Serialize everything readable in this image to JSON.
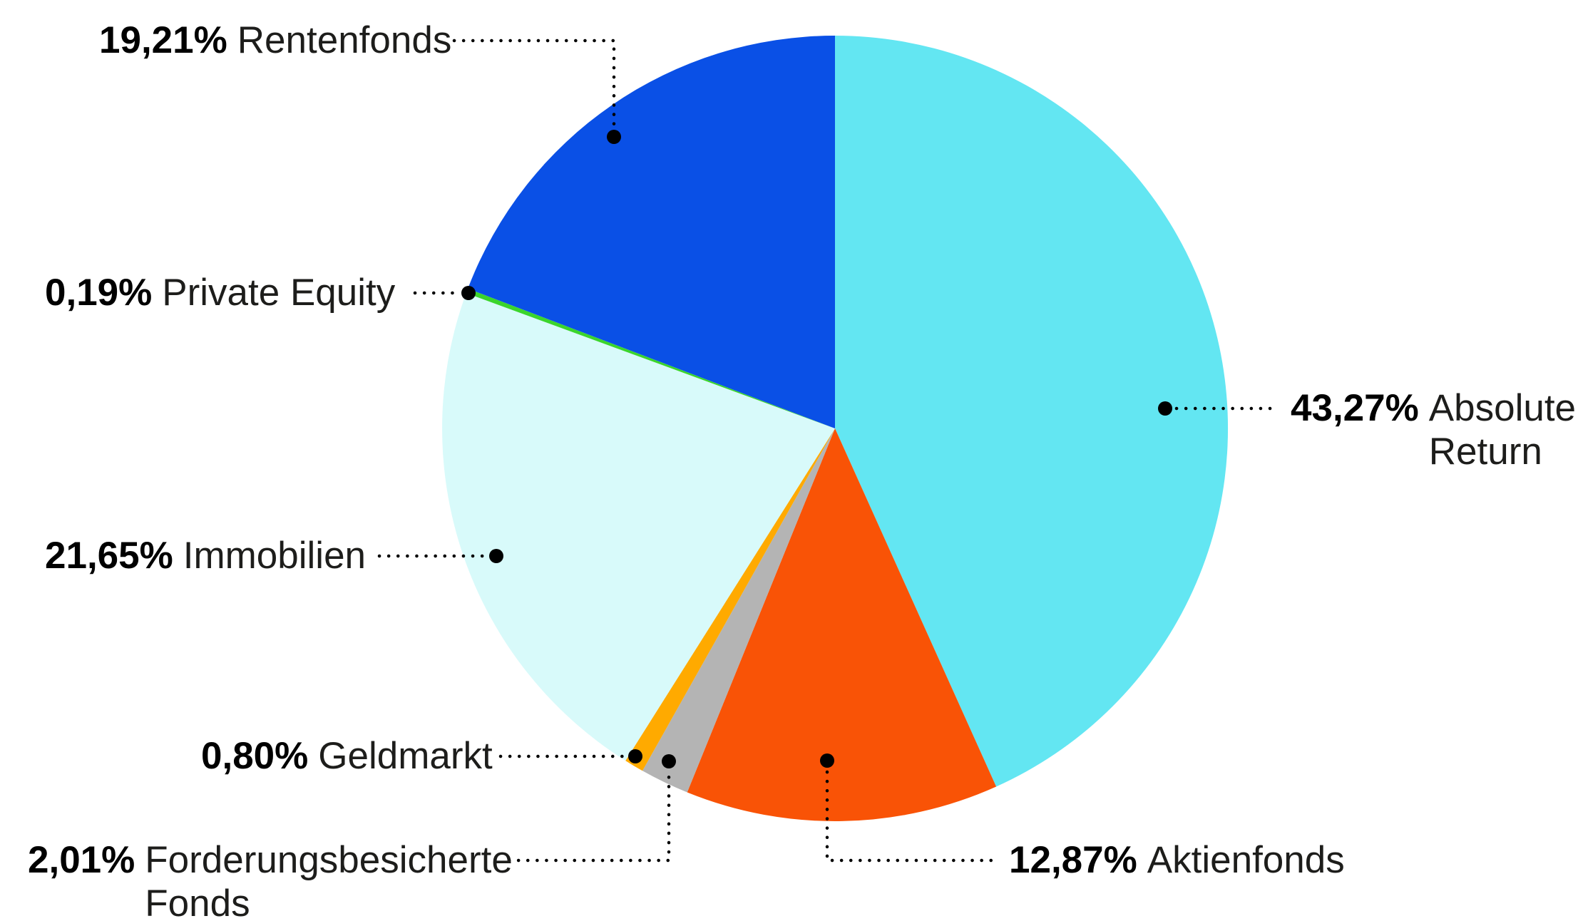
{
  "chart_data": {
    "type": "pie",
    "unit": "%",
    "start_position": "top",
    "direction": "clockwise",
    "background": "#ffffff",
    "leader_line_color": "#000000",
    "label_text_color": "#1d1d1b",
    "slices": [
      {
        "key": "absolute-return",
        "name": "Absolute Return",
        "pct_label": "43,27%",
        "value": 43.27,
        "color": "#63E6F2"
      },
      {
        "key": "aktienfonds",
        "name": "Aktienfonds",
        "pct_label": "12,87%",
        "value": 12.87,
        "color": "#F95306"
      },
      {
        "key": "forderungsbesicherte-fonds",
        "name": "Forderungsbesicherte Fonds",
        "pct_label": "2,01%",
        "value": 2.01,
        "color": "#B4B4B4"
      },
      {
        "key": "geldmarkt",
        "name": "Geldmarkt",
        "pct_label": "0,80%",
        "value": 0.8,
        "color": "#FFAA00"
      },
      {
        "key": "immobilien",
        "name": "Immobilien",
        "pct_label": "21,65%",
        "value": 21.65,
        "color": "#D8FAFA"
      },
      {
        "key": "private-equity",
        "name": "Private Equity",
        "pct_label": "0,19%",
        "value": 0.19,
        "color": "#3BD52C"
      },
      {
        "key": "rentenfonds",
        "name": "Rentenfonds",
        "pct_label": "19,21%",
        "value": 19.21,
        "color": "#0A50E6"
      }
    ]
  }
}
